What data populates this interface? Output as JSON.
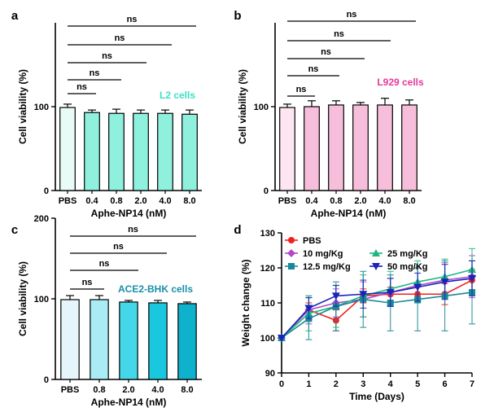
{
  "chart_data": [
    {
      "type": "bar",
      "panel_label": "a",
      "categories": [
        "PBS",
        "0.4",
        "0.8",
        "2.0",
        "4.0",
        "8.0"
      ],
      "values": [
        99,
        93,
        92,
        92,
        92,
        91
      ],
      "errors": [
        4,
        3,
        5,
        4,
        4,
        5
      ],
      "ylabel": "Cell viability (%)",
      "xlabel": "Aphe-NP14 (nM)",
      "yticks": [
        0,
        100
      ],
      "ylim": [
        0,
        200
      ],
      "annotation": "L2 cells",
      "annotation_color": "#3ee0c8",
      "bar_colors": [
        "#e8fbf7",
        "#8ef0dd",
        "#8ef0dd",
        "#8ef0dd",
        "#8ef0dd",
        "#8ef0dd"
      ],
      "significance": [
        "ns",
        "ns",
        "ns",
        "ns",
        "ns"
      ]
    },
    {
      "type": "bar",
      "panel_label": "b",
      "categories": [
        "PBS",
        "0.4",
        "0.8",
        "2.0",
        "4.0",
        "8.0"
      ],
      "values": [
        99,
        100,
        102,
        102,
        102,
        102
      ],
      "errors": [
        4,
        7,
        5,
        3,
        8,
        6
      ],
      "ylabel": "Cell viability (%)",
      "xlabel": "Aphe-NP14 (nM)",
      "yticks": [
        0,
        100
      ],
      "ylim": [
        0,
        200
      ],
      "annotation": "L929 cells",
      "annotation_color": "#e8399b",
      "bar_colors": [
        "#fde6f2",
        "#f7bedb",
        "#f7bedb",
        "#f7bedb",
        "#f7bedb",
        "#f7bedb"
      ],
      "significance": [
        "ns",
        "ns",
        "ns",
        "ns",
        "ns"
      ]
    },
    {
      "type": "bar",
      "panel_label": "c",
      "categories": [
        "PBS",
        "0.8",
        "2.0",
        "4.0",
        "8.0"
      ],
      "values": [
        99,
        99,
        96,
        95,
        94
      ],
      "errors": [
        5,
        5,
        2,
        3,
        2
      ],
      "ylabel": "Cell viability (%)",
      "xlabel": "Aphe-NP14 (nM)",
      "yticks": [
        0,
        100,
        200
      ],
      "ylim": [
        0,
        200
      ],
      "annotation": "ACE2-BHK cells",
      "annotation_color": "#1a8fa8",
      "bar_colors": [
        "#e4f6fb",
        "#a9ecf4",
        "#44d7ea",
        "#19c8de",
        "#0fb2cc"
      ],
      "significance": [
        "ns",
        "ns",
        "ns",
        "ns"
      ]
    },
    {
      "type": "line",
      "panel_label": "d",
      "x": [
        0,
        1,
        2,
        3,
        4,
        5,
        6,
        7
      ],
      "xlabel": "Time (Days)",
      "ylabel": "Weight change (%)",
      "xlim": [
        0,
        7
      ],
      "ylim": [
        90,
        130
      ],
      "xticks": [
        0,
        1,
        2,
        3,
        4,
        5,
        6,
        7
      ],
      "yticks": [
        90,
        100,
        110,
        120,
        130
      ],
      "series": [
        {
          "name": "PBS",
          "color": "#f0201f",
          "marker": "circle",
          "values": [
            100,
            108,
            105,
            112,
            112.5,
            112.5,
            112.5,
            116.5
          ],
          "errors": [
            0,
            2,
            3,
            2,
            2,
            2,
            3,
            3
          ]
        },
        {
          "name": "10   mg/Kg",
          "color": "#b048c8",
          "marker": "diamond",
          "values": [
            100,
            108,
            110,
            111,
            113,
            115,
            116.5,
            117.5
          ],
          "errors": [
            0,
            4,
            4,
            5,
            4,
            5,
            5,
            6
          ]
        },
        {
          "name": "25 mg/Kg",
          "color": "#1db882",
          "marker": "triangle-up",
          "values": [
            100,
            107,
            109,
            112,
            114,
            116,
            117.5,
            119.5
          ],
          "errors": [
            0,
            5,
            6,
            6,
            5,
            6,
            5,
            6
          ]
        },
        {
          "name": "12.5 mg/Kg",
          "color": "#1a8898",
          "marker": "square",
          "values": [
            100,
            105.5,
            109,
            111,
            110,
            111,
            112,
            113
          ],
          "errors": [
            0,
            6,
            7,
            8,
            8,
            9,
            10,
            9
          ]
        },
        {
          "name": "50 mg/Kg",
          "color": "#1a24b8",
          "marker": "triangle-down",
          "values": [
            100,
            108.5,
            112,
            112.5,
            113,
            114.5,
            116,
            117
          ],
          "errors": [
            0,
            3,
            3,
            4,
            4,
            4,
            5,
            5
          ]
        }
      ]
    }
  ]
}
